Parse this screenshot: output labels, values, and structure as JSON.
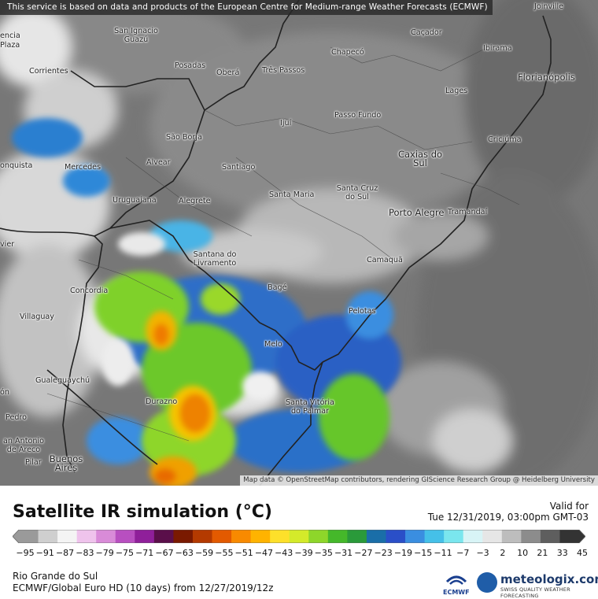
{
  "notice": "This service is based on data and products of the European Centre for Medium-range Weather Forecasts (ECMWF)",
  "attribution": "Map data © OpenStreetMap contributors, rendering GIScience Research Group @ Heidelberg University",
  "title": "Satellite IR simulation (°C)",
  "valid_label": "Valid for",
  "valid_time": "Tue 12/31/2019, 03:00pm GMT-03",
  "region": "Rio Grande do Sul",
  "model_run": "ECMWF/Global Euro HD (10 days)  from  12/27/2019/12z",
  "logos": {
    "ecmwf": "ECMWF",
    "brand": "meteologix.com",
    "tagline": "SWISS QUALITY WEATHER FORECASTING"
  },
  "legend": {
    "labels": [
      "−95",
      "−91",
      "−87",
      "−83",
      "−79",
      "−75",
      "−71",
      "−67",
      "−63",
      "−59",
      "−55",
      "−51",
      "−47",
      "−43",
      "−39",
      "−35",
      "−31",
      "−27",
      "−23",
      "−19",
      "−15",
      "−11",
      "−7",
      "−3",
      "2",
      "10",
      "21",
      "33",
      "45"
    ],
    "colors": [
      "#9a9a9a",
      "#cfcfcf",
      "#f4f4f4",
      "#efc3ec",
      "#d98bd8",
      "#b84fc0",
      "#8f1f9a",
      "#5a0f4a",
      "#7a1a00",
      "#b43a00",
      "#e35a00",
      "#f88a00",
      "#ffb300",
      "#fde02a",
      "#d4ea2a",
      "#8ed62a",
      "#45b82a",
      "#2a9a3a",
      "#1a6ea8",
      "#2a4fc8",
      "#3a8ee0",
      "#45c0e8",
      "#7ae6ee",
      "#d8f4f6",
      "#e6e6e6",
      "#bdbdbd",
      "#8c8c8c",
      "#5e5e5e",
      "#333333"
    ]
  },
  "cities": [
    {
      "name": "Joinville"
    },
    {
      "name": "San Ignacio Guazú"
    },
    {
      "name": "Caçador"
    },
    {
      "name": "Chapecó"
    },
    {
      "name": "Ibirama"
    },
    {
      "name": "Posadas"
    },
    {
      "name": "Oberá"
    },
    {
      "name": "Três Passos"
    },
    {
      "name": "Florianópolis"
    },
    {
      "name": "Corrientes"
    },
    {
      "name": "Lages"
    },
    {
      "name": "Ijuí"
    },
    {
      "name": "Passo Fundo"
    },
    {
      "name": "São Borja"
    },
    {
      "name": "Criciúma"
    },
    {
      "name": "Caxias do Sul"
    },
    {
      "name": "Alvear"
    },
    {
      "name": "Santiago"
    },
    {
      "name": "Mercedes"
    },
    {
      "name": "Santa Maria"
    },
    {
      "name": "Santa Cruz do Sul"
    },
    {
      "name": "Uruguaiana"
    },
    {
      "name": "Alegrete"
    },
    {
      "name": "Porto Alegre"
    },
    {
      "name": "Tramandaí"
    },
    {
      "name": "Santana do Livramento"
    },
    {
      "name": "Camaquã"
    },
    {
      "name": "Concordia"
    },
    {
      "name": "Bagé"
    },
    {
      "name": "Villaguay"
    },
    {
      "name": "Pelotas"
    },
    {
      "name": "Melo"
    },
    {
      "name": "Gualeguaychú"
    },
    {
      "name": "Durazno"
    },
    {
      "name": "Santa Vitória do Palmar"
    },
    {
      "name": "Pedro"
    },
    {
      "name": "an Antonio de Areco"
    },
    {
      "name": "Pilar"
    },
    {
      "name": "Buenos Aires"
    },
    {
      "name": "Plaza"
    },
    {
      "name": "onquista"
    },
    {
      "name": "vier"
    },
    {
      "name": "ón"
    },
    {
      "name": "encia"
    }
  ]
}
